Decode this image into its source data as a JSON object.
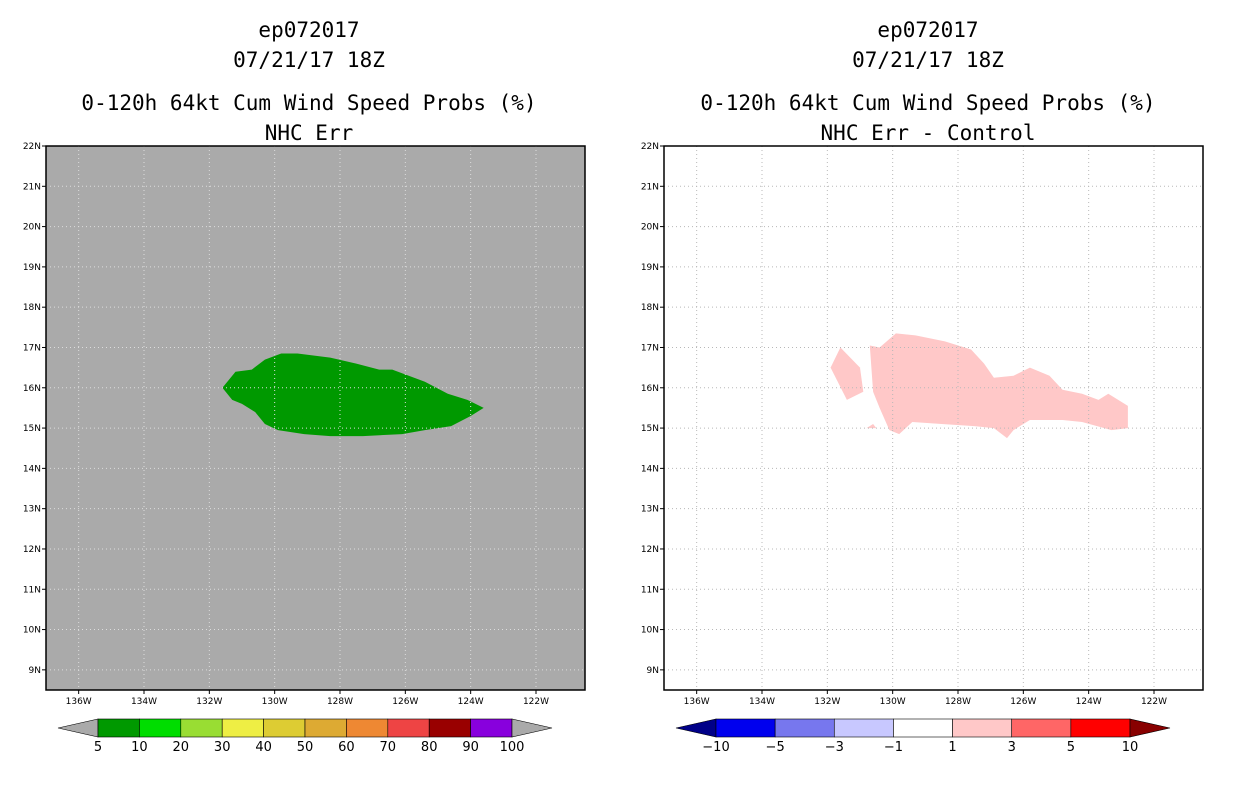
{
  "chart_data": [
    {
      "type": "filled-contour-map",
      "title_lines": [
        "ep072017",
        "07/21/17 18Z",
        "0-120h 64kt Cum Wind Speed Probs (%)",
        "NHC Err"
      ],
      "x_tick_labels": [
        "136W",
        "134W",
        "132W",
        "130W",
        "128W",
        "126W",
        "124W",
        "122W"
      ],
      "x_tick_values": [
        -136,
        -134,
        -132,
        -130,
        -128,
        -126,
        -124,
        -122
      ],
      "y_tick_labels": [
        "9N",
        "10N",
        "11N",
        "12N",
        "13N",
        "14N",
        "15N",
        "16N",
        "17N",
        "18N",
        "19N",
        "20N",
        "21N",
        "22N"
      ],
      "y_tick_values": [
        9,
        10,
        11,
        12,
        13,
        14,
        15,
        16,
        17,
        18,
        19,
        20,
        21,
        22
      ],
      "xlim": [
        -137.0,
        -120.5
      ],
      "ylim": [
        8.5,
        22.0
      ],
      "background_color": "#aaaaaa",
      "grid": true,
      "contour_regions": [
        {
          "level": "5-10",
          "color": "#009900",
          "polygon_lon_lat": [
            [
              -131.6,
              16.0
            ],
            [
              -131.2,
              16.4
            ],
            [
              -130.7,
              16.45
            ],
            [
              -130.3,
              16.7
            ],
            [
              -129.8,
              16.85
            ],
            [
              -129.3,
              16.85
            ],
            [
              -128.3,
              16.75
            ],
            [
              -127.5,
              16.6
            ],
            [
              -126.8,
              16.45
            ],
            [
              -126.4,
              16.45
            ],
            [
              -125.4,
              16.15
            ],
            [
              -124.7,
              15.85
            ],
            [
              -124.1,
              15.7
            ],
            [
              -123.6,
              15.5
            ],
            [
              -124.0,
              15.3
            ],
            [
              -124.6,
              15.05
            ],
            [
              -125.4,
              14.95
            ],
            [
              -126.1,
              14.85
            ],
            [
              -127.3,
              14.8
            ],
            [
              -128.3,
              14.8
            ],
            [
              -129.1,
              14.85
            ],
            [
              -129.9,
              14.95
            ],
            [
              -130.3,
              15.1
            ],
            [
              -130.6,
              15.4
            ],
            [
              -131.0,
              15.6
            ],
            [
              -131.3,
              15.7
            ]
          ]
        }
      ],
      "colorbar": {
        "labels": [
          "5",
          "10",
          "20",
          "30",
          "40",
          "50",
          "60",
          "70",
          "80",
          "90",
          "100"
        ],
        "colors": [
          "#009900",
          "#00dd00",
          "#99dd33",
          "#eeee44",
          "#ddcc33",
          "#ddaa33",
          "#ee8833",
          "#ee4444",
          "#990000",
          "#8800dd"
        ],
        "end_colors": [
          "#aaaaaa",
          "#aaaaaa"
        ]
      }
    },
    {
      "type": "filled-contour-map",
      "title_lines": [
        "ep072017",
        "07/21/17 18Z",
        "0-120h 64kt Cum Wind Speed Probs (%)",
        "NHC Err - Control"
      ],
      "x_tick_labels": [
        "136W",
        "134W",
        "132W",
        "130W",
        "128W",
        "126W",
        "124W",
        "122W"
      ],
      "x_tick_values": [
        -136,
        -134,
        -132,
        -130,
        -128,
        -126,
        -124,
        -122
      ],
      "y_tick_labels": [
        "9N",
        "10N",
        "11N",
        "12N",
        "13N",
        "14N",
        "15N",
        "16N",
        "17N",
        "18N",
        "19N",
        "20N",
        "21N",
        "22N"
      ],
      "y_tick_values": [
        9,
        10,
        11,
        12,
        13,
        14,
        15,
        16,
        17,
        18,
        19,
        20,
        21,
        22
      ],
      "xlim": [
        -137.0,
        -120.5
      ],
      "ylim": [
        8.5,
        22.0
      ],
      "background_color": "#ffffff",
      "grid": true,
      "contour_regions": [
        {
          "level": "1-3",
          "color": "#ffc8c8",
          "polygon_lon_lat": [
            [
              -130.7,
              17.05
            ],
            [
              -130.4,
              17.0
            ],
            [
              -129.9,
              17.35
            ],
            [
              -129.3,
              17.3
            ],
            [
              -128.4,
              17.15
            ],
            [
              -127.6,
              16.95
            ],
            [
              -127.2,
              16.6
            ],
            [
              -126.9,
              16.25
            ],
            [
              -126.3,
              16.3
            ],
            [
              -125.8,
              16.5
            ],
            [
              -125.2,
              16.3
            ],
            [
              -124.8,
              15.95
            ],
            [
              -124.2,
              15.85
            ],
            [
              -123.7,
              15.7
            ],
            [
              -123.4,
              15.85
            ],
            [
              -122.8,
              15.55
            ],
            [
              -122.8,
              15.0
            ],
            [
              -123.3,
              14.95
            ],
            [
              -124.2,
              15.15
            ],
            [
              -124.8,
              15.2
            ],
            [
              -125.8,
              15.2
            ],
            [
              -126.3,
              14.95
            ],
            [
              -126.5,
              14.75
            ],
            [
              -126.9,
              15.0
            ],
            [
              -127.5,
              15.05
            ],
            [
              -128.5,
              15.1
            ],
            [
              -129.4,
              15.15
            ],
            [
              -129.8,
              14.85
            ],
            [
              -130.1,
              14.95
            ],
            [
              -130.4,
              15.5
            ],
            [
              -130.6,
              15.9
            ]
          ]
        },
        {
          "level": "1-3",
          "color": "#ffc8c8",
          "polygon_lon_lat": [
            [
              -131.9,
              16.5
            ],
            [
              -131.6,
              17.0
            ],
            [
              -131.0,
              16.5
            ],
            [
              -130.9,
              15.9
            ],
            [
              -131.4,
              15.7
            ]
          ]
        },
        {
          "level": "1-3",
          "color": "#ffc8c8",
          "polygon_lon_lat": [
            [
              -130.8,
              15.0
            ],
            [
              -130.6,
              15.1
            ],
            [
              -130.5,
              15.0
            ]
          ]
        }
      ],
      "colorbar": {
        "labels": [
          "−10",
          "−5",
          "−3",
          "−1",
          "1",
          "3",
          "5",
          "10"
        ],
        "colors": [
          "#0000ee",
          "#7777ee",
          "#c8c8ff",
          "#ffffff",
          "#ffc8c8",
          "#ff6666",
          "#ff0000"
        ],
        "end_colors": [
          "#000088",
          "#880000"
        ]
      }
    }
  ]
}
